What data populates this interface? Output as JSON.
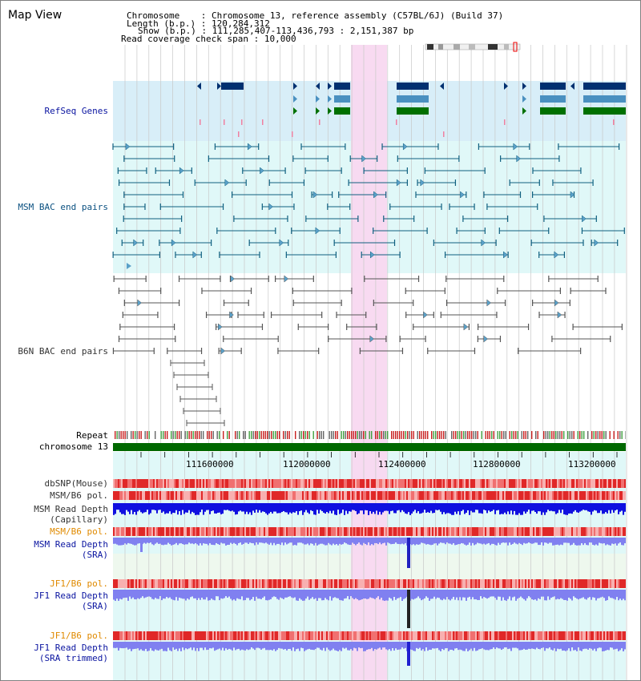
{
  "window": {
    "title": "Map View"
  },
  "info": {
    "chromosome_label": "Chromosome",
    "chromosome_value": "Chromosome 13, reference assembly (C57BL/6J) (Build 37)",
    "length_label": "Length (b.p.)",
    "length_value": "120,284,312",
    "show_label": "Show (b.p.)",
    "show_value": "111,285,407-113,436,793 : 2,151,387 bp",
    "coverage_label": "Read coverage check span",
    "coverage_value": "10,000"
  },
  "tracks": {
    "refseq": "RefSeq Genes",
    "msm_bac": "MSM BAC end pairs",
    "b6n_bac": "B6N BAC end pairs",
    "repeat": "Repeat",
    "chromosome": "chromosome 13",
    "dbsnp": "dbSNP(Mouse)",
    "msm_b6_pol": "MSM/B6 pol.",
    "msm_read_depth_cap_1": "MSM Read Depth",
    "msm_read_depth_cap_2": "(Capillary)",
    "msm_b6_pol_2": "MSM/B6 pol.",
    "msm_read_depth_sra_1": "MSM Read Depth",
    "msm_read_depth_sra_2": "(SRA)",
    "jf1_b6_pol": "JF1/B6 pol.",
    "jf1_read_depth_sra_1": "JF1 Read Depth",
    "jf1_read_depth_sra_2": "(SRA)",
    "jf1_b6_pol_2": "JF1/B6 pol.",
    "jf1_read_depth_trim_1": "JF1 Read Depth",
    "jf1_read_depth_trim_2": "(SRA trimmed)"
  },
  "axis": {
    "ticks": [
      "111600000",
      "112000000",
      "112400000",
      "112800000",
      "113200000"
    ]
  },
  "colors": {
    "refseq_bg": "#d8eef8",
    "bac_bg": "#e0f8f8",
    "highlight": "#f8d8f0",
    "gene_navy": "#003070",
    "gene_blue": "#4a90c0",
    "gene_green": "#007000",
    "msm_bac": "#106080",
    "b6n_bac": "#555555",
    "chromosome": "#006800",
    "snp": "#e84040",
    "depth_dark": "#1010e0",
    "depth_light": "#8080f0"
  }
}
